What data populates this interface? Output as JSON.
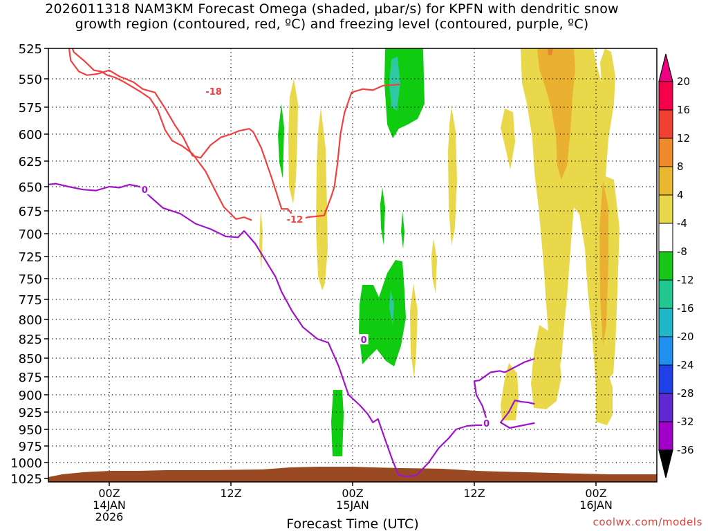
{
  "chart_data": {
    "type": "heatmap",
    "title_line1": "2026011318 NAM3KM Forecast Omega (shaded, μbar/s) for KPFN with dendritic snow",
    "title_line2": "growth region (contoured, red, ºC) and freezing level (contoured, purple, ºC)",
    "xlabel": "Forecast Time (UTC)",
    "credit": "coolwx.com/models",
    "y_axis": {
      "scale": "pressure (log)",
      "ticks": [
        "525",
        "550",
        "575",
        "600",
        "625",
        "650",
        "675",
        "700",
        "725",
        "750",
        "775",
        "800",
        "825",
        "850",
        "875",
        "900",
        "925",
        "950",
        "975",
        "1000",
        "1025"
      ],
      "range": [
        525,
        1025
      ],
      "grid": "dotted"
    },
    "x_axis": {
      "ticks": [
        {
          "label": "00Z",
          "sub": "14JAN",
          "sub2": "2026"
        },
        {
          "label": "12Z"
        },
        {
          "label": "00Z",
          "sub": "15JAN"
        },
        {
          "label": "12Z"
        },
        {
          "label": "00Z",
          "sub": "16JAN"
        }
      ],
      "grid": "dotted"
    },
    "colorbar": {
      "labels": [
        "20",
        "16",
        "12",
        "8",
        "4",
        "-4",
        "-8",
        "-12",
        "-16",
        "-20",
        "-24",
        "-28",
        "-32",
        "-36"
      ],
      "colors": [
        "#f5004a",
        "#f04030",
        "#ee8a2a",
        "#eab830",
        "#e8d84a",
        "#ffffff",
        "#18c818",
        "#20c890",
        "#20b8c8",
        "#2090f0",
        "#2040e8",
        "#6028d0",
        "#a000c8",
        "#a8a8a8"
      ]
    },
    "series": [
      {
        "label": "-18",
        "color": "#f04040",
        "points": [
          [
            -4,
            517
          ],
          [
            -3.5,
            528
          ],
          [
            -2.5,
            535
          ],
          [
            -1.5,
            543
          ],
          [
            -0.8,
            544
          ],
          [
            -0.2,
            547
          ],
          [
            0.6,
            549
          ],
          [
            1.5,
            553
          ],
          [
            3,
            561
          ],
          [
            4,
            567
          ],
          [
            4.8,
            578
          ],
          [
            5.5,
            596
          ],
          [
            6.2,
            606
          ],
          [
            7.2,
            611
          ],
          [
            8.2,
            618
          ],
          [
            9.5,
            635
          ],
          [
            10.5,
            655
          ],
          [
            11.3,
            671
          ],
          [
            12.5,
            684
          ],
          [
            13.3,
            682
          ],
          [
            14,
            685
          ]
        ]
      },
      {
        "label": "-12",
        "color": "#f04040",
        "points": [
          [
            -4,
            522
          ],
          [
            -3.8,
            535
          ],
          [
            -3,
            544
          ],
          [
            -2.2,
            547
          ],
          [
            -1.2,
            546
          ],
          [
            0,
            543
          ],
          [
            1,
            548
          ],
          [
            1.6,
            550
          ],
          [
            2.4,
            553
          ],
          [
            3.3,
            559
          ],
          [
            4.5,
            562
          ],
          [
            5.5,
            576
          ],
          [
            6.5,
            592
          ],
          [
            7.3,
            603
          ],
          [
            8.2,
            620
          ],
          [
            9,
            622
          ],
          [
            10,
            610
          ],
          [
            11,
            603
          ],
          [
            12,
            600
          ],
          [
            12.8,
            597
          ],
          [
            13.8,
            595
          ],
          [
            14.2,
            598
          ],
          [
            15,
            613
          ],
          [
            16,
            641
          ],
          [
            17,
            673
          ],
          [
            17.6,
            673
          ],
          [
            18.5,
            685
          ],
          [
            19.6,
            682
          ],
          [
            21.2,
            680
          ]
        ],
        "trail": [
          [
            21.2,
            680
          ],
          [
            21.9,
            660
          ],
          [
            22.2,
            650
          ],
          [
            22.5,
            628
          ],
          [
            22.8,
            600
          ],
          [
            23.2,
            580
          ],
          [
            23.9,
            562
          ],
          [
            25,
            559
          ],
          [
            26,
            560
          ],
          [
            27,
            556
          ],
          [
            28.6,
            555
          ]
        ]
      },
      {
        "label": "0",
        "color": "#a014c8",
        "points": [
          [
            -6,
            648
          ],
          [
            -5.3,
            647
          ],
          [
            -4,
            650
          ],
          [
            -2.6,
            653
          ],
          [
            -1.3,
            654
          ],
          [
            0,
            650
          ],
          [
            1,
            651
          ],
          [
            2,
            648
          ],
          [
            3,
            650
          ],
          [
            4,
            660
          ],
          [
            5.3,
            672
          ],
          [
            7,
            678
          ],
          [
            8.5,
            689
          ],
          [
            10,
            695
          ],
          [
            11.5,
            703
          ],
          [
            12.7,
            704
          ],
          [
            13.3,
            697
          ],
          [
            14.4,
            711
          ],
          [
            15.5,
            731
          ],
          [
            16.4,
            748
          ],
          [
            17,
            766
          ],
          [
            18,
            789
          ],
          [
            19.1,
            810
          ],
          [
            20.5,
            825
          ],
          [
            21.6,
            830
          ]
        ]
      },
      {
        "label": "0b",
        "color": "#a014c8",
        "points": [
          [
            21.6,
            830
          ],
          [
            22.6,
            860
          ],
          [
            23.6,
            900
          ],
          [
            24.7,
            915
          ],
          [
            25.5,
            928
          ],
          [
            26,
            940
          ],
          [
            26.5,
            935
          ],
          [
            27.2,
            965
          ],
          [
            27.9,
            995
          ],
          [
            28.5,
            1019
          ],
          [
            29.3,
            1022
          ],
          [
            30.3,
            1020
          ],
          [
            31.5,
            1000
          ],
          [
            32.5,
            978
          ],
          [
            33.5,
            963
          ],
          [
            34.2,
            950
          ],
          [
            35.3,
            945
          ],
          [
            36.2,
            944
          ],
          [
            36.8,
            944
          ]
        ]
      },
      {
        "label": "0c",
        "color": "#a014c8",
        "points": [
          [
            36,
            881
          ],
          [
            36.5,
            880
          ],
          [
            37.6,
            869
          ],
          [
            38.5,
            867
          ],
          [
            39,
            869
          ],
          [
            40,
            862
          ],
          [
            41,
            855
          ],
          [
            41.9,
            851
          ]
        ]
      },
      {
        "label": "0d",
        "color": "#a014c8",
        "points": [
          [
            36,
            881
          ],
          [
            36.2,
            900
          ],
          [
            36.8,
            916
          ],
          [
            37.2,
            935
          ]
        ]
      },
      {
        "label": "0e",
        "color": "#a014c8",
        "points": [
          [
            38.6,
            940
          ],
          [
            39.4,
            925
          ],
          [
            40,
            908
          ],
          [
            40.6,
            910
          ],
          [
            41.3,
            911
          ],
          [
            41.9,
            913
          ]
        ]
      },
      {
        "label": "0f",
        "color": "#a014c8",
        "points": [
          [
            38.6,
            940
          ],
          [
            39.5,
            948
          ],
          [
            40.5,
            945
          ],
          [
            41.9,
            941
          ]
        ]
      }
    ],
    "contour_labels": [
      {
        "text": "-18",
        "x": 10.3,
        "y": 561,
        "color": "#f04040"
      },
      {
        "text": "-12",
        "x": 18.3,
        "y": 684,
        "color": "#f04040"
      },
      {
        "text": "0",
        "x": 3.5,
        "y": 653,
        "color": "#a014c8"
      },
      {
        "text": "0",
        "x": 25.1,
        "y": 826,
        "color": "#a014c8"
      },
      {
        "text": "0",
        "x": 37.2,
        "y": 941,
        "color": "#a014c8"
      }
    ],
    "terrain_color": "#9a4a22"
  }
}
